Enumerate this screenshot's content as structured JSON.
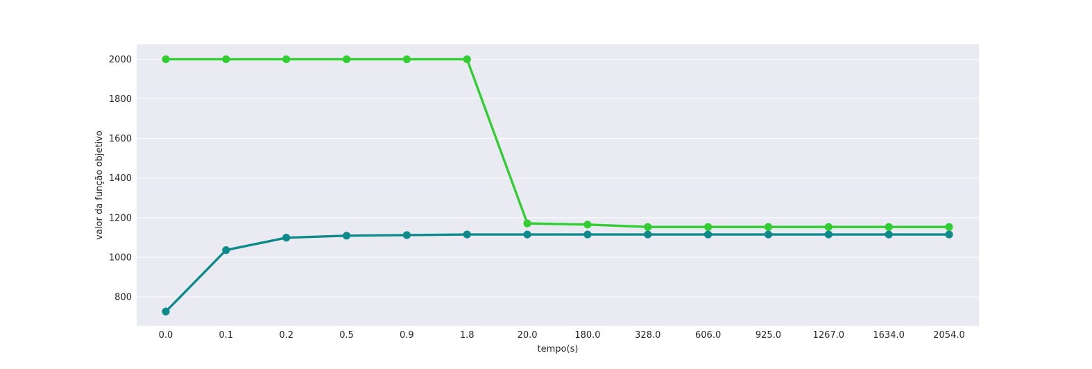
{
  "chart_data": {
    "type": "line",
    "categories": [
      "0.0",
      "0.1",
      "0.2",
      "0.5",
      "0.9",
      "1.8",
      "20.0",
      "180.0",
      "328.0",
      "606.0",
      "925.0",
      "1267.0",
      "1634.0",
      "2054.0"
    ],
    "series": [
      {
        "color": "#32cd32",
        "values": [
          2000,
          2000,
          2000,
          2000,
          2000,
          2000,
          1171,
          1165,
          1153,
          1153,
          1153,
          1153,
          1153,
          1153
        ]
      },
      {
        "color": "#0e8a8a",
        "values": [
          726,
          1036,
          1099,
          1109,
          1112,
          1115,
          1115,
          1115,
          1115,
          1115,
          1115,
          1115,
          1115,
          1115
        ]
      }
    ],
    "xlabel": "tempo(s)",
    "ylabel": "valor da função objetivo",
    "ylim": [
      653,
      2075
    ],
    "yticks": [
      800,
      1000,
      1200,
      1400,
      1600,
      1800,
      2000
    ],
    "grid": true,
    "background": "#eaeaf2"
  }
}
